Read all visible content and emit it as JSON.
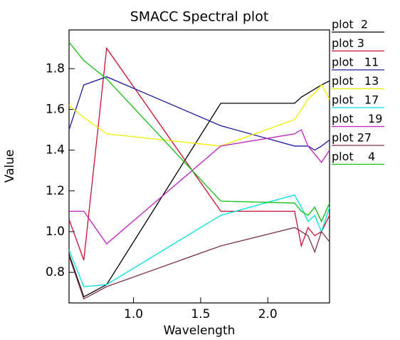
{
  "chart_data": {
    "type": "line",
    "title": "SMACC Spectral plot",
    "x_label": "Wavelength",
    "y_label": "Value",
    "x": [
      0.52,
      0.63,
      0.8,
      1.65,
      2.2,
      2.25,
      2.3,
      2.35,
      2.4,
      2.46
    ],
    "series": [
      {
        "name": "plot  2",
        "color": "#000000",
        "values": [
          0.89,
          0.68,
          0.74,
          1.63,
          1.63,
          1.66,
          1.68,
          1.7,
          1.72,
          1.74
        ]
      },
      {
        "name": "plot 3",
        "color": "#c8102e",
        "values": [
          1.06,
          0.86,
          1.9,
          1.1,
          1.1,
          0.93,
          1.02,
          0.98,
          1.0,
          1.08
        ]
      },
      {
        "name": "plot   11",
        "color": "#1a1aa0",
        "values": [
          1.5,
          1.72,
          1.76,
          1.52,
          1.42,
          1.42,
          1.42,
          1.4,
          1.42,
          1.45
        ]
      },
      {
        "name": "plot   13",
        "color": "#f0f000",
        "values": [
          1.62,
          1.56,
          1.48,
          1.42,
          1.55,
          1.6,
          1.65,
          1.68,
          1.72,
          1.65
        ]
      },
      {
        "name": "plot   17",
        "color": "#00e0e0",
        "values": [
          0.91,
          0.73,
          0.74,
          1.08,
          1.18,
          1.12,
          1.05,
          1.08,
          1.0,
          1.12
        ]
      },
      {
        "name": "plot    19",
        "color": "#c020c0",
        "values": [
          1.1,
          1.1,
          0.94,
          1.42,
          1.48,
          1.5,
          1.42,
          1.38,
          1.34,
          1.4
        ]
      },
      {
        "name": "plot 27",
        "color": "#803050",
        "values": [
          0.88,
          0.67,
          0.73,
          0.93,
          1.02,
          1.0,
          0.98,
          0.9,
          1.0,
          0.95
        ]
      },
      {
        "name": "plot    4",
        "color": "#10c010",
        "values": [
          1.93,
          1.84,
          1.75,
          1.15,
          1.14,
          1.1,
          1.08,
          1.12,
          1.05,
          1.14
        ]
      }
    ],
    "xlim": [
      0.52,
      2.46
    ],
    "ylim": [
      0.65,
      1.99
    ],
    "xticks": [
      {
        "value": 1.0,
        "label": "1.0"
      },
      1.5,
      {
        "value": 2.0,
        "label": "2.0"
      }
    ],
    "yticks": [
      0.8,
      {
        "value": 1.0,
        "label": "1.0"
      },
      1.2,
      1.4,
      1.6,
      1.8
    ],
    "grid": false
  }
}
